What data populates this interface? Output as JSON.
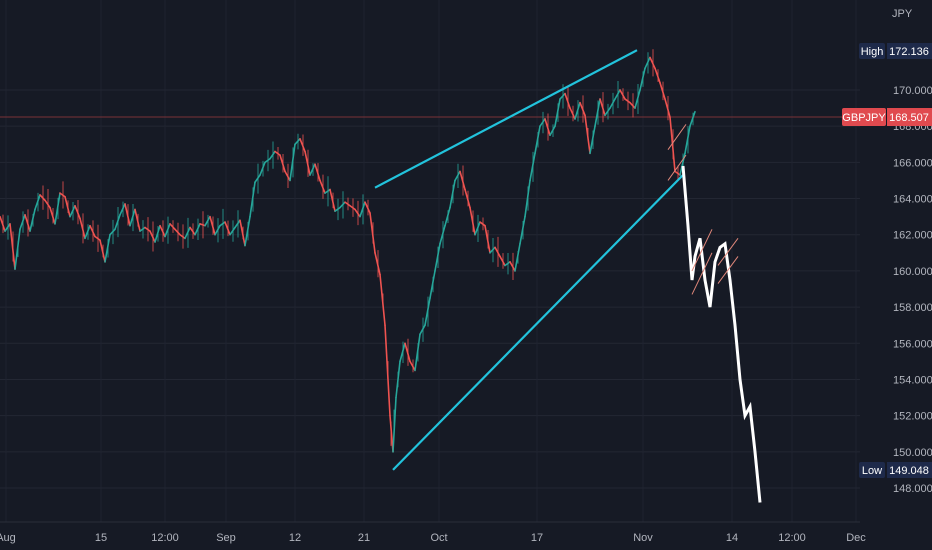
{
  "chart_data": {
    "type": "line",
    "symbol": "GBPJPY",
    "currency": "JPY",
    "last_price": "168.507",
    "high_label": "High",
    "high_value": "172.136",
    "low_label": "Low",
    "low_value": "149.048",
    "ylim": [
      146.5,
      174.2
    ],
    "y_ticks": [
      "148.000",
      "150.000",
      "152.000",
      "154.000",
      "156.000",
      "158.000",
      "160.000",
      "162.000",
      "164.000",
      "166.000",
      "168.000",
      "170.000"
    ],
    "x_ticks": [
      "Aug",
      "15",
      "12:00",
      "Sep",
      "12",
      "21",
      "Oct",
      "17",
      "Nov",
      "14",
      "12:00",
      "Dec"
    ],
    "price_series": {
      "name": "GBPJPY",
      "x": [
        0,
        5,
        10,
        15,
        20,
        25,
        30,
        35,
        40,
        45,
        50,
        55,
        60,
        65,
        70,
        75,
        80,
        85,
        90,
        95,
        100,
        105,
        110,
        115,
        120,
        125,
        130,
        135,
        140,
        145,
        150,
        155,
        160,
        165,
        170,
        175,
        180,
        185,
        190,
        195,
        200,
        205,
        210,
        215,
        220,
        225,
        230,
        235,
        240,
        245,
        250,
        255,
        260,
        265,
        270,
        275,
        280,
        285,
        290,
        295,
        300,
        305,
        310,
        315,
        320,
        325,
        330,
        335,
        340,
        345,
        350,
        355,
        360,
        365,
        370,
        375,
        380,
        385,
        390,
        393,
        396,
        400,
        405,
        410,
        415,
        420,
        425,
        430,
        435,
        440,
        445,
        450,
        455,
        460,
        465,
        470,
        475,
        480,
        485,
        490,
        495,
        500,
        505,
        510,
        515,
        520,
        525,
        530,
        535,
        540,
        545,
        550,
        555,
        560,
        565,
        570,
        575,
        580,
        585,
        590,
        595,
        600,
        605,
        610,
        615,
        620,
        625,
        630,
        635,
        640,
        645,
        650,
        655,
        660,
        665,
        670,
        675,
        680,
        685,
        690,
        695
      ],
      "values": [
        163.0,
        162.2,
        162.6,
        160.1,
        162.3,
        163.1,
        162.2,
        163.4,
        164.2,
        163.9,
        163.5,
        162.6,
        164.3,
        164.1,
        163.0,
        163.6,
        162.9,
        161.8,
        162.5,
        161.9,
        161.7,
        160.5,
        162.0,
        162.3,
        163.1,
        163.7,
        162.5,
        163.4,
        162.2,
        162.4,
        162.2,
        161.6,
        162.5,
        161.9,
        162.6,
        162.3,
        162.0,
        161.8,
        162.4,
        162.0,
        162.6,
        162.5,
        163.0,
        162.0,
        162.5,
        162.7,
        162.0,
        162.4,
        162.8,
        161.4,
        163.0,
        164.9,
        165.3,
        166.0,
        166.2,
        166.6,
        166.4,
        165.5,
        165.0,
        167.0,
        167.3,
        166.6,
        165.3,
        165.9,
        165.0,
        164.3,
        164.5,
        163.3,
        163.5,
        163.8,
        163.6,
        163.4,
        163.0,
        163.8,
        163.2,
        161.0,
        159.8,
        157.0,
        152.0,
        150.0,
        153.0,
        155.0,
        156.0,
        155.0,
        154.5,
        156.5,
        157.0,
        158.5,
        160.0,
        161.5,
        162.5,
        163.5,
        165.0,
        165.5,
        164.5,
        163.5,
        162.0,
        162.7,
        162.5,
        161.0,
        161.3,
        160.8,
        160.3,
        160.5,
        160.0,
        161.5,
        163.0,
        165.0,
        166.5,
        168.0,
        168.4,
        167.5,
        168.0,
        169.5,
        169.8,
        169.0,
        168.4,
        169.3,
        168.6,
        166.5,
        168.0,
        169.5,
        168.6,
        169.0,
        169.5,
        170.0,
        169.5,
        169.3,
        169.0,
        170.0,
        171.2,
        171.8,
        171.2,
        170.4,
        169.5,
        168.5,
        165.5,
        165.3,
        166.5,
        168.0,
        168.8
      ]
    },
    "projection": {
      "name": "",
      "x": [
        683,
        688,
        692,
        695,
        700,
        705,
        710,
        715,
        720,
        725,
        730,
        735,
        740,
        745,
        750,
        755,
        760
      ],
      "values": [
        165.8,
        162.5,
        159.5,
        160.8,
        161.8,
        159.5,
        158.0,
        160.5,
        161.3,
        161.5,
        159.5,
        157.0,
        154.0,
        152.0,
        152.5,
        150.0,
        147.2
      ]
    },
    "channel_lines": [
      {
        "from": [
          375,
          164.6
        ],
        "to": [
          637,
          172.2
        ]
      },
      {
        "from": [
          393,
          149.0
        ],
        "to": [
          683,
          165.3
        ]
      }
    ],
    "flags": [
      {
        "x0": 668,
        "x1": 686,
        "top": [
          166.7,
          168.1
        ],
        "bottom": [
          165.0,
          166.4
        ]
      },
      {
        "x0": 692,
        "x1": 712,
        "top": [
          160.0,
          162.3
        ],
        "bottom": [
          158.7,
          161.0
        ]
      },
      {
        "x0": 718,
        "x1": 738,
        "top": [
          160.3,
          161.8
        ],
        "bottom": [
          159.3,
          160.8
        ]
      }
    ]
  }
}
